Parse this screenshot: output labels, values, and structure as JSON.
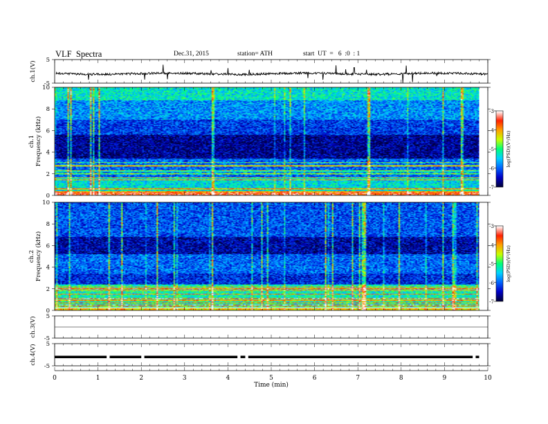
{
  "header": {
    "title": "VLF  Spectra",
    "date": "Dec.31, 2015",
    "station": "station= ATH",
    "start": "start  UT  =   6  :0  : 1"
  },
  "chart_data": [
    {
      "type": "line",
      "panel": "ch1-waveform",
      "ylabel": "ch.1(V)",
      "yticks": [
        "5",
        "-5"
      ],
      "ylim": [
        -5,
        5
      ],
      "baseline": -1,
      "xlim": [
        0,
        10
      ]
    },
    {
      "type": "heatmap",
      "panel": "ch1-spectrogram",
      "ylabel_top": "ch.1",
      "ylabel": "Frequency  (kHz)",
      "yticks": [
        "0",
        "2",
        "4",
        "6",
        "8",
        "10"
      ],
      "ylim": [
        0,
        10
      ],
      "xlim": [
        0,
        9.8
      ],
      "colorbar": {
        "label": "log(PSD)(V²/Hz)",
        "ticks": [
          "-3",
          "-4",
          "-5",
          "-6",
          "-7"
        ],
        "range": [
          -7,
          -3
        ]
      },
      "bands": [
        {
          "from": 0,
          "to": 0.25,
          "value": -3.5
        },
        {
          "from": 0.25,
          "to": 1.6,
          "value": -5.4
        },
        {
          "from": 1.6,
          "to": 3.4,
          "value": -6.0
        },
        {
          "from": 3.4,
          "to": 5.6,
          "value": -6.7
        },
        {
          "from": 5.6,
          "to": 7.0,
          "value": -6.2
        },
        {
          "from": 7.0,
          "to": 8.8,
          "value": -5.8
        },
        {
          "from": 8.8,
          "to": 10,
          "value": -5.3
        }
      ]
    },
    {
      "type": "heatmap",
      "panel": "ch2-spectrogram",
      "ylabel_top": "ch.2",
      "ylabel": "Frequency  (kHz)",
      "yticks": [
        "0",
        "2",
        "4",
        "6",
        "8",
        "10"
      ],
      "ylim": [
        0,
        10
      ],
      "xlim": [
        0,
        9.8
      ],
      "colorbar": {
        "label": "log(PSD)(V²/Hz)",
        "ticks": [
          "-3",
          "-4",
          "-5",
          "-6",
          "-7"
        ],
        "range": [
          -7,
          -3
        ]
      },
      "bands": [
        {
          "from": 0,
          "to": 0.3,
          "value": -4.2
        },
        {
          "from": 0.3,
          "to": 2.4,
          "value": -5.2
        },
        {
          "from": 2.4,
          "to": 3.4,
          "value": -6.3
        },
        {
          "from": 3.4,
          "to": 5.2,
          "value": -6.0
        },
        {
          "from": 5.2,
          "to": 6.8,
          "value": -6.6
        },
        {
          "from": 6.8,
          "to": 10,
          "value": -6.1
        }
      ]
    },
    {
      "type": "line",
      "panel": "ch3-waveform",
      "ylabel": "ch.3(V)",
      "yticks": [
        "5",
        "-5"
      ],
      "ylim": [
        -5,
        5
      ],
      "baseline": 0,
      "xlim": [
        0,
        10
      ]
    },
    {
      "type": "line",
      "panel": "ch4-waveform",
      "ylabel": "ch.4(V)",
      "yticks": [
        "5",
        "-5"
      ],
      "ylim": [
        -5,
        5
      ],
      "baseline": -1,
      "xlim": [
        0,
        9.8
      ],
      "gaps": [
        1.23,
        2.03,
        4.25,
        4.43,
        9.68
      ]
    }
  ],
  "xaxis": {
    "label": "Time  (min)",
    "ticks": [
      "0",
      "1",
      "2",
      "3",
      "4",
      "5",
      "6",
      "7",
      "8",
      "9",
      "10"
    ],
    "range": [
      0,
      10
    ]
  },
  "colors": {
    "frame": "#000000",
    "background": "#ffffff",
    "colormap": [
      "#00003c",
      "#0000c8",
      "#0064ff",
      "#00d2ff",
      "#00ff78",
      "#c8ff00",
      "#ffa000",
      "#ff2000",
      "#ffffff"
    ]
  }
}
